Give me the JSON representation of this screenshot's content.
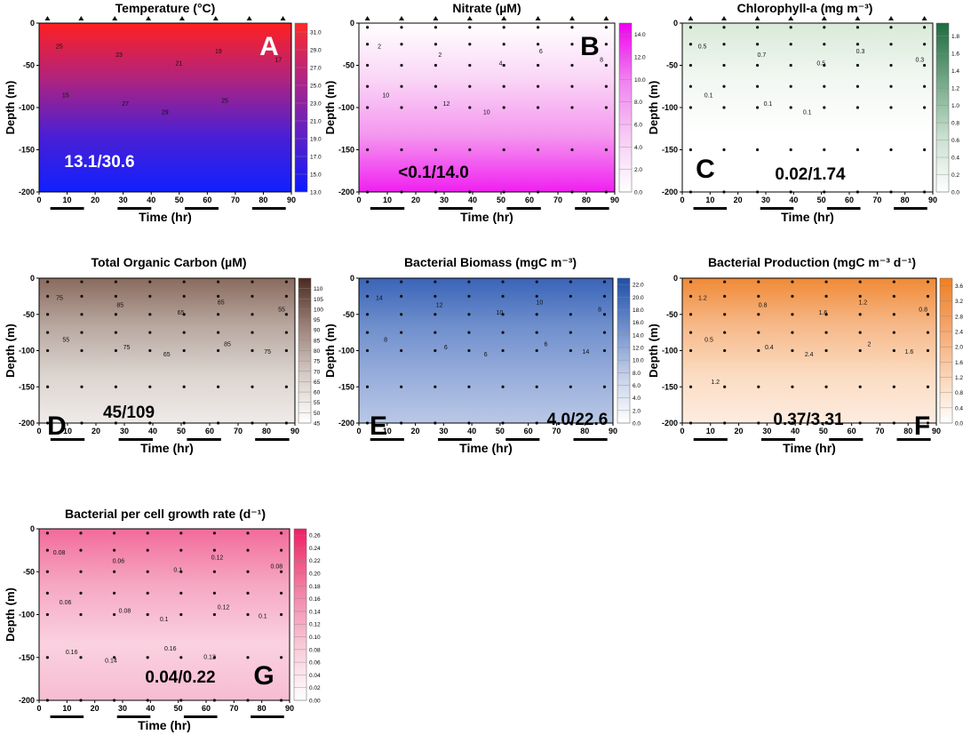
{
  "x_axis": {
    "label": "Time (hr)",
    "ticks": [
      "0",
      "10",
      "20",
      "30",
      "40",
      "50",
      "60",
      "70",
      "80",
      "90"
    ],
    "range": [
      0,
      90
    ]
  },
  "y_axis": {
    "label": "Depth (m)",
    "ticks": [
      "0",
      "-50",
      "-100",
      "-150",
      "-200"
    ],
    "range": [
      -200,
      0
    ]
  },
  "dark_periods_hr": [
    [
      4,
      16
    ],
    [
      28,
      40
    ],
    [
      52,
      64
    ],
    [
      76,
      88
    ]
  ],
  "chart_data": [
    {
      "type": "heatmap",
      "id": "A",
      "letter": "A",
      "title": "Temperature (°C)",
      "range_label": "13.1/30.6",
      "xlabel": "Time (hr)",
      "ylabel": "Depth (m)",
      "xlim": [
        0,
        90
      ],
      "ylim": [
        -200,
        0
      ],
      "colorbar": {
        "ticks": [
          "13.0",
          "15.0",
          "17.0",
          "19.0",
          "21.0",
          "23.0",
          "25.0",
          "27.0",
          "29.0",
          "31.0"
        ],
        "min": 13,
        "max": 32,
        "colors": [
          "#0a1aff",
          "#5d20c8",
          "#b02585",
          "#ff2a2a"
        ]
      },
      "contour_labels": [
        "25",
        "23",
        "21",
        "19",
        "17",
        "15",
        "27",
        "29",
        "25"
      ],
      "sample_times_hr": [
        3,
        15,
        27,
        39,
        51,
        63,
        75,
        87
      ]
    },
    {
      "type": "heatmap",
      "id": "B",
      "letter": "B",
      "title": "Nitrate (µM)",
      "range_label": "<0.1/14.0",
      "xlabel": "Time (hr)",
      "ylabel": "Depth (m)",
      "xlim": [
        0,
        90
      ],
      "ylim": [
        -200,
        0
      ],
      "colorbar": {
        "ticks": [
          "0.0",
          "2.0",
          "4.0",
          "6.0",
          "8.0",
          "10.0",
          "12.0",
          "14.0"
        ],
        "min": 0,
        "max": 15,
        "colors": [
          "#ffffff",
          "#f6cbf4",
          "#f07ff0",
          "#f000f0"
        ]
      },
      "contour_labels": [
        "2",
        "2",
        "4",
        "6",
        "8",
        "10",
        "12",
        "10"
      ]
    },
    {
      "type": "heatmap",
      "id": "C",
      "letter": "C",
      "title": "Chlorophyll-a (mg m⁻³)",
      "range_label": "0.02/1.74",
      "xlabel": "Time (hr)",
      "ylabel": "Depth (m)",
      "xlim": [
        0,
        90
      ],
      "ylim": [
        -200,
        0
      ],
      "colorbar": {
        "ticks": [
          "0.0",
          "0.2",
          "0.4",
          "0.6",
          "0.8",
          "1.0",
          "1.2",
          "1.4",
          "1.6",
          "1.8"
        ],
        "min": 0,
        "max": 1.95,
        "colors": [
          "#ffffff",
          "#c9dfcf",
          "#6fa683",
          "#1e6b40"
        ]
      },
      "contour_labels": [
        "0.5",
        "0.7",
        "0.5",
        "0.3",
        "0.3",
        "0.1",
        "0.1",
        "0.1"
      ]
    },
    {
      "type": "heatmap",
      "id": "D",
      "letter": "D",
      "title": "Total Organic Carbon (µM)",
      "range_label": "45/109",
      "xlabel": "Time (hr)",
      "ylabel": "Depth (m)",
      "xlim": [
        0,
        90
      ],
      "ylim": [
        -200,
        0
      ],
      "colorbar": {
        "ticks": [
          "45",
          "50",
          "55",
          "60",
          "65",
          "70",
          "75",
          "80",
          "85",
          "90",
          "95",
          "100",
          "105",
          "110"
        ],
        "min": 45,
        "max": 115,
        "colors": [
          "#ffffff",
          "#d6ccc6",
          "#9c8178",
          "#4a2a1f"
        ]
      },
      "contour_labels": [
        "75",
        "85",
        "65",
        "65",
        "55",
        "55",
        "75",
        "65",
        "85",
        "75"
      ]
    },
    {
      "type": "heatmap",
      "id": "E",
      "letter": "E",
      "title": "Bacterial Biomass (mgC m⁻³)",
      "range_label": "4.0/22.6",
      "xlabel": "Time (hr)",
      "ylabel": "Depth (m)",
      "xlim": [
        0,
        90
      ],
      "ylim": [
        -200,
        0
      ],
      "colorbar": {
        "ticks": [
          "0.0",
          "2.0",
          "4.0",
          "6.0",
          "8.0",
          "10.0",
          "12.0",
          "14.0",
          "16.0",
          "18.0",
          "20.0",
          "22.0"
        ],
        "min": 0,
        "max": 23,
        "colors": [
          "#ffffff",
          "#c3cfe8",
          "#6c8ccb",
          "#1f4fa8"
        ]
      },
      "contour_labels": [
        "14",
        "12",
        "10",
        "10",
        "8",
        "8",
        "6",
        "6",
        "6",
        "14"
      ]
    },
    {
      "type": "heatmap",
      "id": "F",
      "letter": "F",
      "title": "Bacterial Production (mgC m⁻³ d⁻¹)",
      "range_label": "0.37/3.31",
      "xlabel": "Time (hr)",
      "ylabel": "Depth (m)",
      "xlim": [
        0,
        90
      ],
      "ylim": [
        -200,
        0
      ],
      "colorbar": {
        "ticks": [
          "0.00",
          "0.40",
          "0.80",
          "1.20",
          "1.60",
          "2.00",
          "2.40",
          "2.80",
          "3.20",
          "3.60"
        ],
        "min": 0,
        "max": 3.8,
        "colors": [
          "#ffffff",
          "#fbd3b3",
          "#f5a469",
          "#ef7f22"
        ]
      },
      "contour_labels": [
        "1.2",
        "0.8",
        "1.6",
        "1.2",
        "0.8",
        "0.5",
        "0.4",
        "2.4",
        "2",
        "1.6",
        "1.2"
      ]
    },
    {
      "type": "heatmap",
      "id": "G",
      "letter": "G",
      "title": "Bacterial per cell growth rate (d⁻¹)",
      "range_label": "0.04/0.22",
      "xlabel": "Time (hr)",
      "ylabel": "Depth (m)",
      "xlim": [
        0,
        90
      ],
      "ylim": [
        -200,
        0
      ],
      "colorbar": {
        "ticks": [
          "0.00",
          "0.02",
          "0.04",
          "0.06",
          "0.08",
          "0.10",
          "0.12",
          "0.14",
          "0.16",
          "0.18",
          "0.20",
          "0.22",
          "0.24",
          "0.26"
        ],
        "min": 0,
        "max": 0.27,
        "colors": [
          "#ffffff",
          "#f8c7d6",
          "#f27aa1",
          "#ee1f63"
        ]
      },
      "contour_labels": [
        "0.08",
        "0.06",
        "0.1",
        "0.12",
        "0.08",
        "0.06",
        "0.08",
        "0.1",
        "0.12",
        "0.1",
        "0.16",
        "0.14",
        "0.16",
        "0.12"
      ]
    }
  ]
}
